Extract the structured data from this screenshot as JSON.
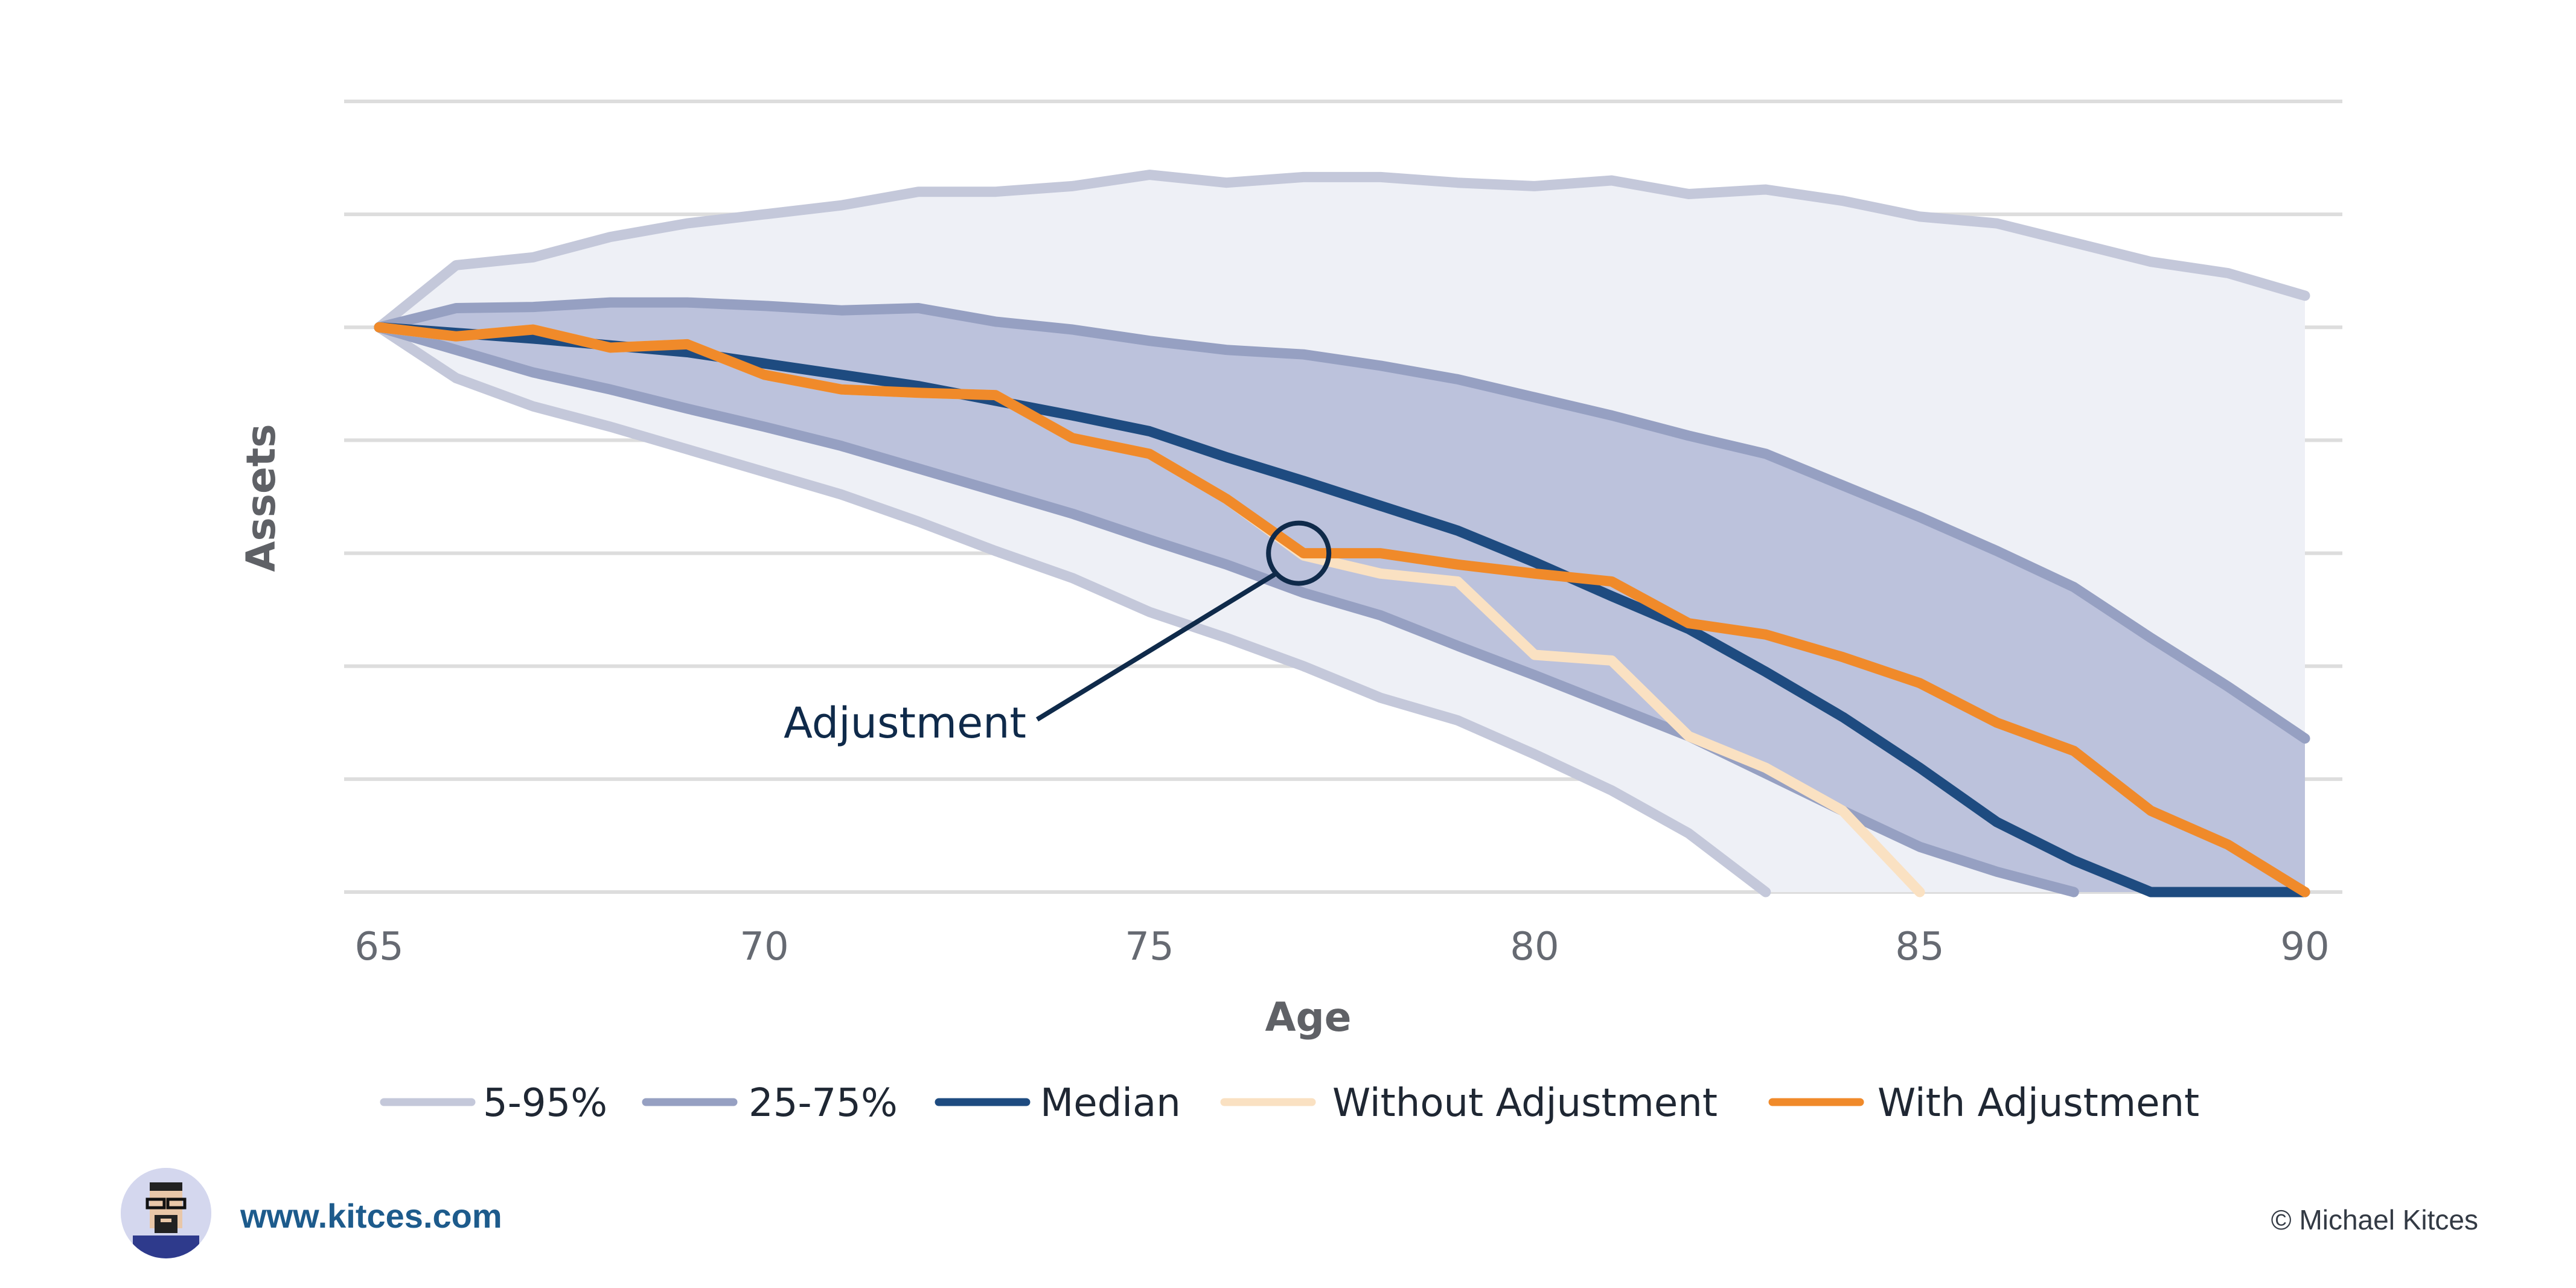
{
  "chart_data": {
    "type": "line",
    "title": "",
    "xlabel": "Age",
    "ylabel": "Assets",
    "xlim": [
      65,
      90
    ],
    "ylim": [
      0,
      7
    ],
    "x_ticks": [
      65,
      70,
      75,
      80,
      85,
      90
    ],
    "y_gridlines": [
      0,
      1,
      2,
      3,
      4,
      5,
      6,
      7
    ],
    "grid": true,
    "legend_position": "bottom",
    "colors": {
      "band_5_95": "#c4c8da",
      "band_fill_outer": "#eef0f6",
      "band_25_75": "#96a0c2",
      "band_fill_inner": "#bcc2dc",
      "median": "#1e4b80",
      "without_adjustment": "#fae1c2",
      "with_adjustment": "#f08a2a",
      "grid": "#dddddd"
    },
    "series": [
      {
        "name": "5-95%",
        "role": "band_upper_95",
        "x": [
          65,
          66,
          67,
          68,
          69,
          70,
          71,
          72,
          73,
          74,
          75,
          76,
          77,
          78,
          79,
          80,
          81,
          82,
          83,
          84,
          85,
          86,
          87,
          88,
          89,
          90
        ],
        "values": [
          5.0,
          5.55,
          5.62,
          5.8,
          5.92,
          6.0,
          6.08,
          6.2,
          6.2,
          6.25,
          6.35,
          6.28,
          6.33,
          6.33,
          6.28,
          6.25,
          6.3,
          6.18,
          6.22,
          6.12,
          5.98,
          5.92,
          5.75,
          5.58,
          5.48,
          5.28
        ]
      },
      {
        "name": "5-95%",
        "role": "band_lower_5",
        "x": [
          65,
          66,
          67,
          68,
          69,
          70,
          71,
          72,
          73,
          74,
          75,
          76,
          77,
          78,
          79,
          80,
          81,
          82,
          83
        ],
        "values": [
          5.0,
          4.55,
          4.3,
          4.12,
          3.92,
          3.72,
          3.52,
          3.28,
          3.02,
          2.78,
          2.48,
          2.25,
          2.0,
          1.72,
          1.52,
          1.22,
          0.9,
          0.52,
          0.0
        ]
      },
      {
        "name": "25-75%",
        "role": "band_upper_75",
        "x": [
          65,
          66,
          67,
          68,
          69,
          70,
          71,
          72,
          73,
          74,
          75,
          76,
          77,
          78,
          79,
          80,
          81,
          82,
          83,
          84,
          85,
          86,
          87,
          88,
          89,
          90
        ],
        "values": [
          5.0,
          5.17,
          5.18,
          5.22,
          5.22,
          5.19,
          5.15,
          5.17,
          5.05,
          4.98,
          4.88,
          4.8,
          4.76,
          4.66,
          4.54,
          4.38,
          4.22,
          4.04,
          3.88,
          3.6,
          3.32,
          3.02,
          2.7,
          2.25,
          1.82,
          1.36
        ]
      },
      {
        "name": "25-75%",
        "role": "band_lower_25",
        "x": [
          65,
          66,
          67,
          68,
          69,
          70,
          71,
          72,
          73,
          74,
          75,
          76,
          77,
          78,
          79,
          80,
          81,
          82,
          83,
          84,
          85,
          86,
          87
        ],
        "values": [
          5.0,
          4.8,
          4.6,
          4.45,
          4.28,
          4.12,
          3.95,
          3.75,
          3.55,
          3.35,
          3.12,
          2.9,
          2.65,
          2.45,
          2.18,
          1.92,
          1.65,
          1.38,
          1.05,
          0.72,
          0.4,
          0.18,
          0.0
        ]
      },
      {
        "name": "Median",
        "x": [
          65,
          66,
          67,
          68,
          69,
          70,
          71,
          72,
          73,
          74,
          75,
          76,
          77,
          78,
          79,
          80,
          81,
          82,
          83,
          84,
          85,
          86,
          87,
          88,
          89,
          90
        ],
        "values": [
          5.0,
          4.95,
          4.9,
          4.84,
          4.78,
          4.68,
          4.58,
          4.48,
          4.35,
          4.22,
          4.08,
          3.85,
          3.64,
          3.42,
          3.2,
          2.92,
          2.62,
          2.33,
          1.95,
          1.55,
          1.1,
          0.62,
          0.28,
          0.0,
          0.0,
          0.0
        ]
      },
      {
        "name": "Without Adjustment",
        "x": [
          65,
          66,
          67,
          68,
          69,
          70,
          71,
          72,
          73,
          74,
          75,
          76,
          77,
          78,
          79,
          80,
          81,
          82,
          83,
          84,
          85
        ],
        "values": [
          5.0,
          4.92,
          4.98,
          4.82,
          4.85,
          4.58,
          4.45,
          4.42,
          4.4,
          4.02,
          3.88,
          3.48,
          2.98,
          2.82,
          2.75,
          2.1,
          2.05,
          1.38,
          1.1,
          0.72,
          0.0
        ]
      },
      {
        "name": "With Adjustment",
        "x": [
          65,
          66,
          67,
          68,
          69,
          70,
          71,
          72,
          73,
          74,
          75,
          76,
          77,
          78,
          79,
          80,
          81,
          82,
          83,
          84,
          85,
          86,
          87,
          88,
          89,
          90
        ],
        "values": [
          5.0,
          4.92,
          4.98,
          4.82,
          4.85,
          4.58,
          4.45,
          4.42,
          4.4,
          4.02,
          3.88,
          3.48,
          3.0,
          3.0,
          2.9,
          2.82,
          2.75,
          2.38,
          2.28,
          2.08,
          1.85,
          1.5,
          1.25,
          0.72,
          0.42,
          0.0
        ]
      }
    ],
    "legend": [
      "5-95%",
      "25-75%",
      "Median",
      "Without Adjustment",
      "With Adjustment"
    ],
    "annotations": [
      {
        "text": "Adjustment",
        "x": 77,
        "y": 3.0
      }
    ]
  },
  "footer": {
    "website": "www.kitces.com",
    "copyright": "© Michael Kitces"
  }
}
